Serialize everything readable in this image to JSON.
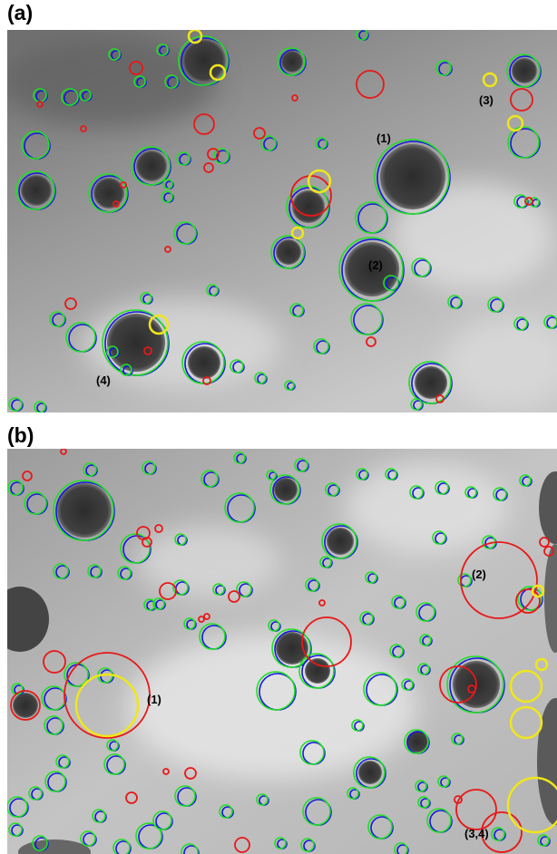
{
  "panels": [
    {
      "label": "(a)",
      "annotations": [
        "(1)",
        "(2)",
        "(3)",
        "(4)"
      ]
    },
    {
      "label": "(b)",
      "annotations": [
        "(1)",
        "(2)",
        "(3,4)"
      ]
    }
  ]
}
